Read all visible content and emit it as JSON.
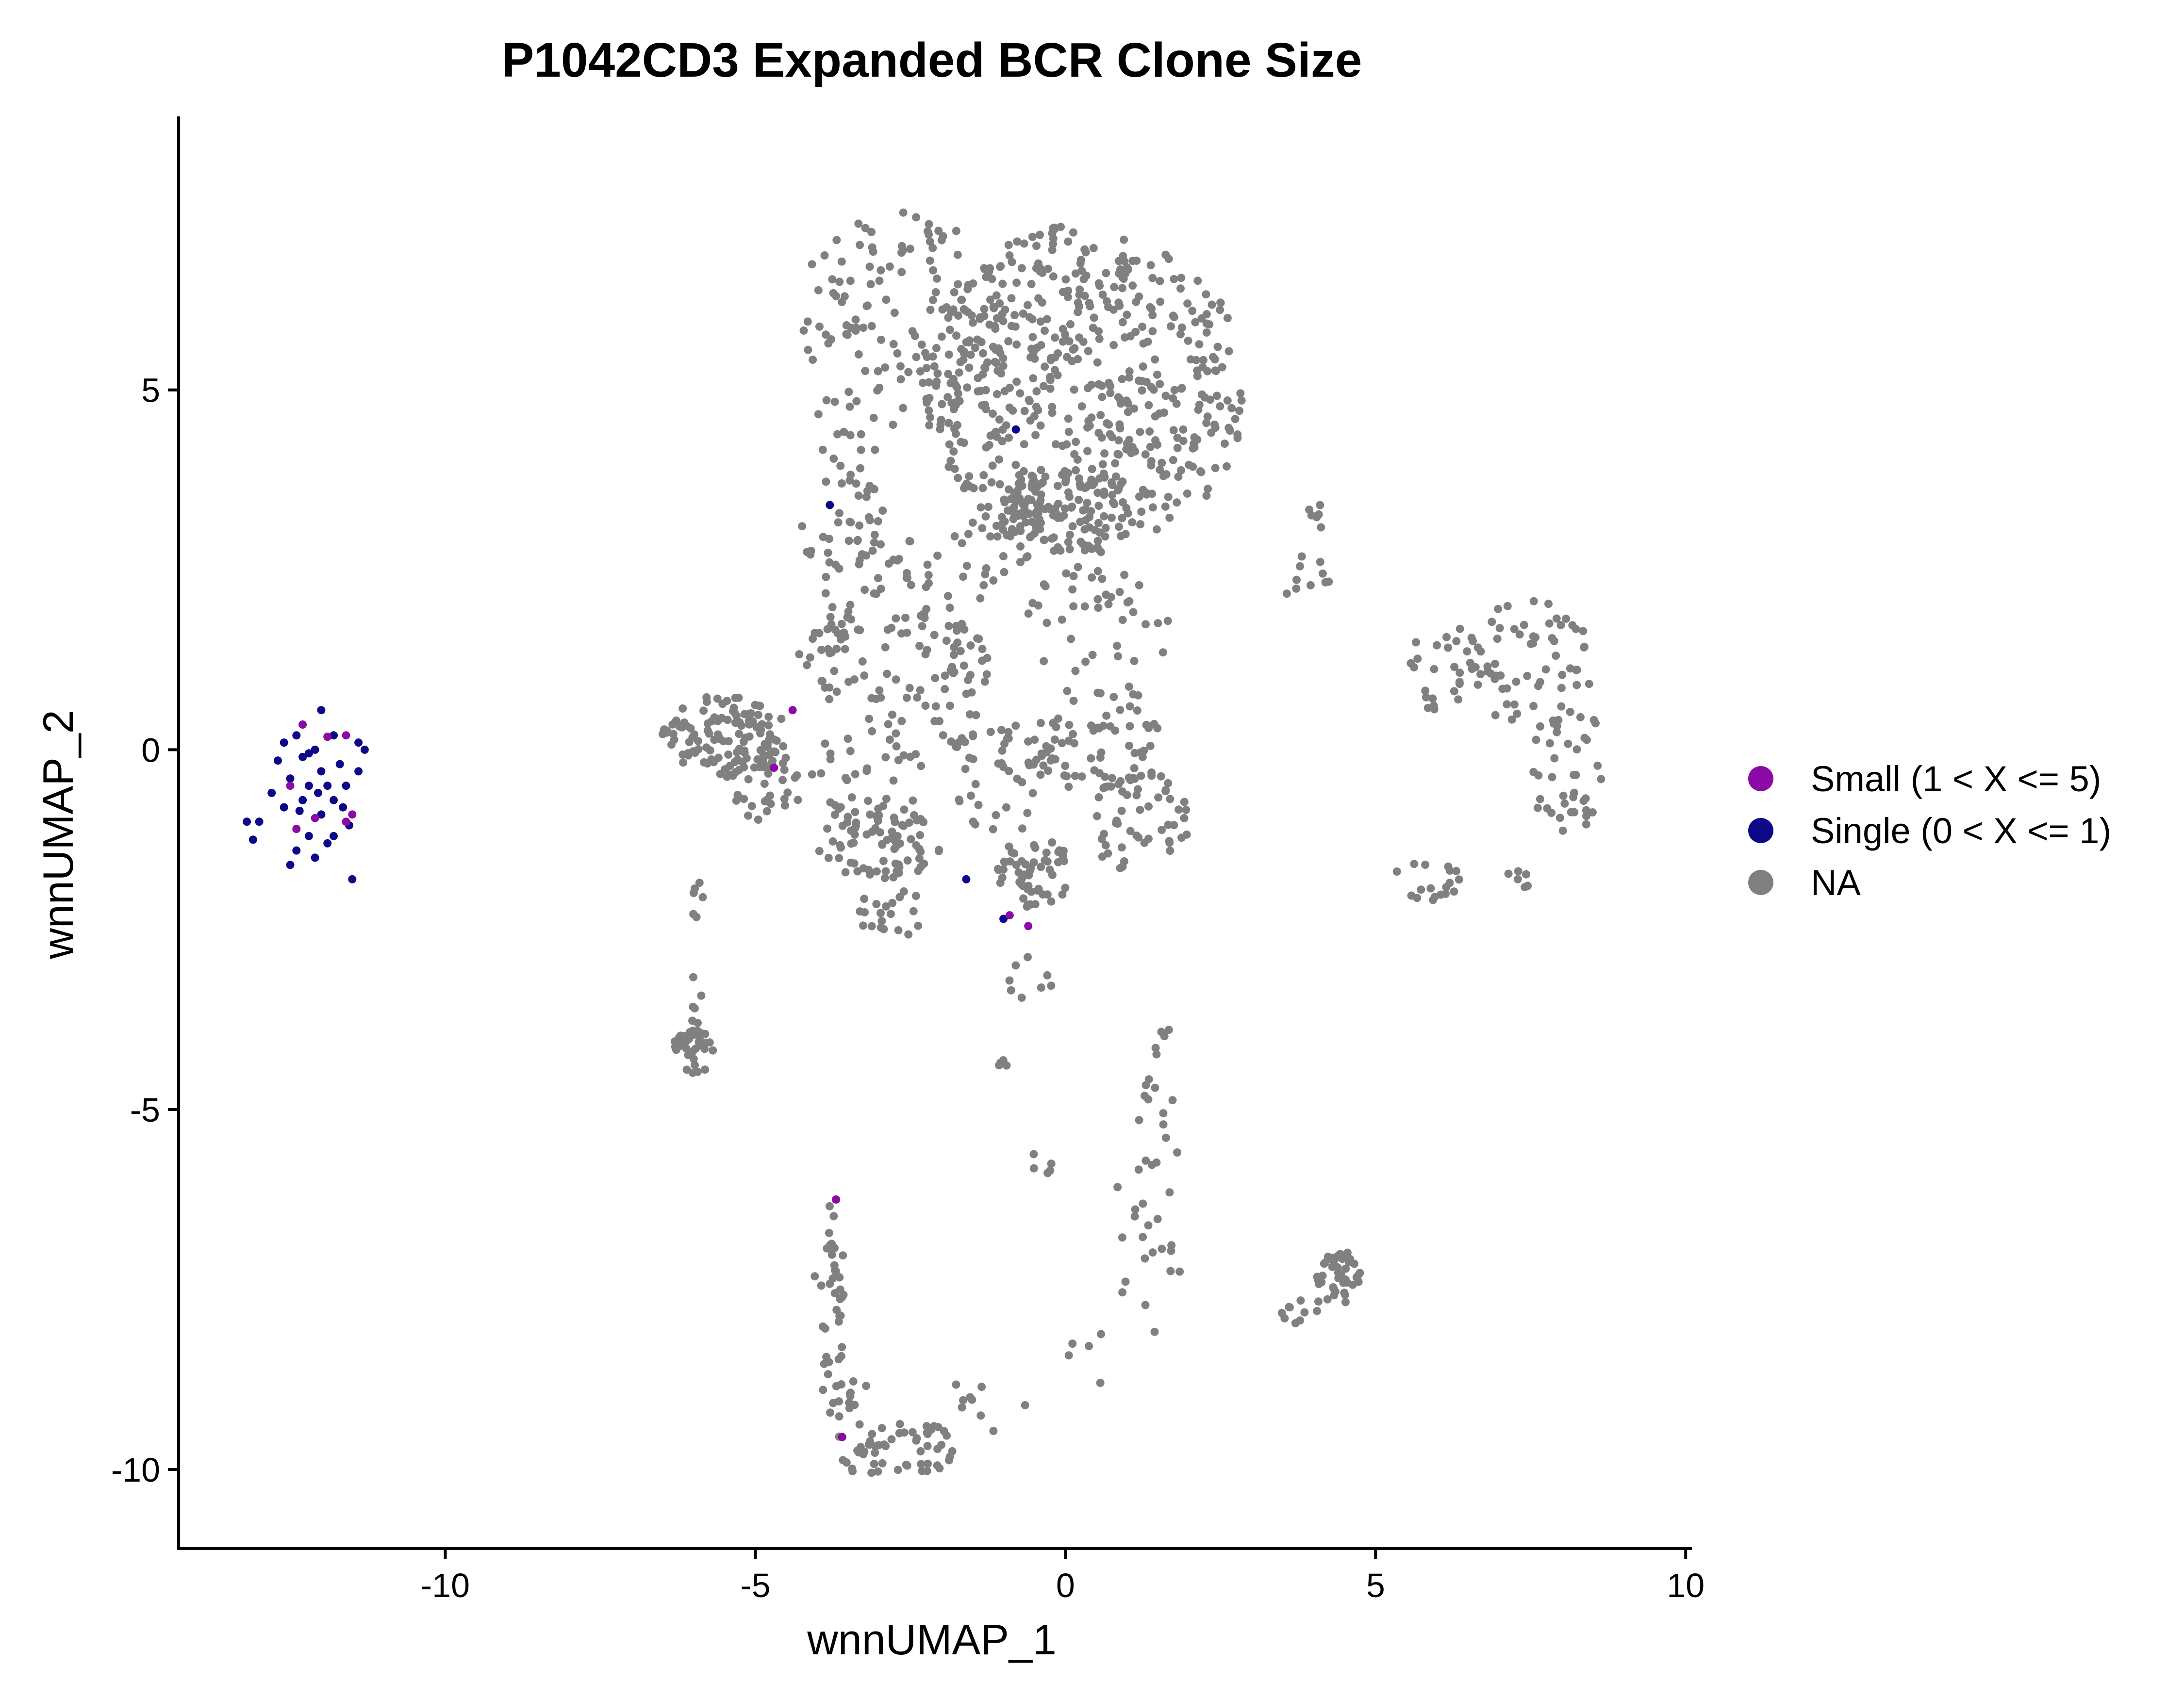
{
  "chart_data": {
    "type": "scatter",
    "title": "P1042CD3 Expanded BCR Clone Size",
    "xlabel": "wnnUMAP_1",
    "ylabel": "wnnUMAP_2",
    "xlim": [
      -14.3,
      10.1
    ],
    "ylim": [
      -11.1,
      8.8
    ],
    "xticks": [
      -10,
      -5,
      0,
      5,
      10
    ],
    "yticks": [
      -10,
      -5,
      0,
      5
    ],
    "xtick_labels": [
      "-10",
      "-5",
      "0",
      "5",
      "10"
    ],
    "ytick_labels": [
      "-10",
      "-5",
      "0",
      "5"
    ],
    "grid": false,
    "legend": {
      "placement": "right"
    },
    "series": [
      {
        "name": "Small (1 < X <= 5)",
        "color": "#8B0AA5",
        "points": [
          [
            -12.3,
            0.35
          ],
          [
            -11.9,
            0.18
          ],
          [
            -11.6,
            0.2
          ],
          [
            -12.5,
            -0.5
          ],
          [
            -11.5,
            -0.9
          ],
          [
            -11.6,
            -1.0
          ],
          [
            -12.4,
            -1.1
          ],
          [
            -12.1,
            -0.95
          ],
          [
            -4.4,
            0.55
          ],
          [
            -4.7,
            -0.25
          ],
          [
            -0.9,
            -2.3
          ],
          [
            -0.6,
            -2.45
          ],
          [
            -3.7,
            -6.25
          ],
          [
            -3.6,
            -9.55
          ]
        ]
      },
      {
        "name": "Single (0 < X <= 1)",
        "color": "#0D0887",
        "points": [
          [
            -12.0,
            0.55
          ],
          [
            -12.4,
            0.2
          ],
          [
            -12.6,
            0.1
          ],
          [
            -12.1,
            0.0
          ],
          [
            -11.8,
            0.2
          ],
          [
            -11.4,
            0.1
          ],
          [
            -12.3,
            -0.1
          ],
          [
            -11.7,
            -0.2
          ],
          [
            -12.0,
            -0.3
          ],
          [
            -11.4,
            -0.3
          ],
          [
            -12.5,
            -0.4
          ],
          [
            -12.2,
            -0.5
          ],
          [
            -11.9,
            -0.5
          ],
          [
            -11.6,
            -0.5
          ],
          [
            -12.3,
            -0.7
          ],
          [
            -11.8,
            -0.7
          ],
          [
            -12.6,
            -0.8
          ],
          [
            -12.0,
            -0.9
          ],
          [
            -12.8,
            -0.6
          ],
          [
            -13.0,
            -1.0
          ],
          [
            -12.2,
            -1.2
          ],
          [
            -11.9,
            -1.3
          ],
          [
            -12.4,
            -1.4
          ],
          [
            -12.5,
            -1.6
          ],
          [
            -12.1,
            -1.5
          ],
          [
            -11.8,
            -1.2
          ],
          [
            -11.5,
            -1.8
          ],
          [
            -13.2,
            -1.0
          ],
          [
            -13.1,
            -1.25
          ],
          [
            -11.3,
            0.0
          ],
          [
            -12.7,
            -0.15
          ],
          [
            -12.2,
            -0.05
          ],
          [
            -11.65,
            -0.8
          ],
          [
            -12.35,
            -0.85
          ],
          [
            -12.05,
            -0.6
          ],
          [
            -11.55,
            -1.05
          ],
          [
            -0.8,
            4.45
          ],
          [
            -3.8,
            3.4
          ],
          [
            -1.6,
            -1.8
          ],
          [
            -1.0,
            -2.35
          ]
        ]
      },
      {
        "name": "NA",
        "color": "#808080",
        "clusters": [
          {
            "cx": 0.3,
            "cy": 5.0,
            "rx": 2.6,
            "ry": 2.3,
            "n": 560,
            "seed": 11
          },
          {
            "cx": -2.7,
            "cy": 6.0,
            "rx": 1.6,
            "ry": 1.5,
            "n": 120,
            "seed": 12
          },
          {
            "cx": -3.6,
            "cy": 3.2,
            "rx": 0.7,
            "ry": 1.8,
            "n": 70,
            "seed": 13
          },
          {
            "cx": 0.0,
            "cy": 3.4,
            "rx": 1.1,
            "ry": 0.6,
            "n": 90,
            "seed": 14
          },
          {
            "cx": -5.5,
            "cy": 0.2,
            "rx": 1.0,
            "ry": 0.6,
            "n": 120,
            "seed": 15
          },
          {
            "cx": -4.8,
            "cy": -0.5,
            "rx": 0.6,
            "ry": 0.5,
            "n": 30,
            "seed": 16
          },
          {
            "cx": -3.8,
            "cy": 1.2,
            "rx": 0.6,
            "ry": 0.6,
            "n": 25,
            "seed": 17
          },
          {
            "cx": -2.6,
            "cy": 1.5,
            "rx": 1.0,
            "ry": 1.0,
            "n": 45,
            "seed": 18
          },
          {
            "cx": -3.2,
            "cy": -0.3,
            "rx": 0.9,
            "ry": 0.9,
            "n": 45,
            "seed": 19
          },
          {
            "cx": -3.0,
            "cy": -1.3,
            "rx": 1.0,
            "ry": 0.5,
            "n": 70,
            "seed": 20
          },
          {
            "cx": -2.8,
            "cy": -2.3,
            "rx": 0.6,
            "ry": 0.4,
            "n": 20,
            "seed": 21
          },
          {
            "cx": -1.7,
            "cy": 0.9,
            "rx": 0.5,
            "ry": 0.9,
            "n": 40,
            "seed": 22
          },
          {
            "cx": -1.0,
            "cy": -0.4,
            "rx": 0.8,
            "ry": 0.8,
            "n": 40,
            "seed": 23
          },
          {
            "cx": -0.5,
            "cy": -1.7,
            "rx": 0.6,
            "ry": 0.5,
            "n": 55,
            "seed": 24
          },
          {
            "cx": 0.5,
            "cy": 0.2,
            "rx": 1.0,
            "ry": 0.8,
            "n": 70,
            "seed": 25
          },
          {
            "cx": 1.2,
            "cy": -1.0,
            "rx": 0.9,
            "ry": 0.8,
            "n": 50,
            "seed": 26
          },
          {
            "cx": 0.5,
            "cy": 1.8,
            "rx": 1.3,
            "ry": 0.8,
            "n": 40,
            "seed": 27
          },
          {
            "cx": -1.3,
            "cy": 2.7,
            "rx": 0.8,
            "ry": 0.6,
            "n": 25,
            "seed": 28
          },
          {
            "cx": 3.8,
            "cy": 2.4,
            "rx": 0.6,
            "ry": 0.3,
            "n": 10,
            "seed": 29
          },
          {
            "cx": 4.1,
            "cy": 3.2,
            "rx": 0.3,
            "ry": 0.2,
            "n": 6,
            "seed": 30
          },
          {
            "cx": 7.5,
            "cy": 1.2,
            "rx": 1.0,
            "ry": 0.9,
            "n": 60,
            "seed": 31
          },
          {
            "cx": 8.1,
            "cy": -0.3,
            "rx": 0.7,
            "ry": 0.9,
            "n": 40,
            "seed": 32
          },
          {
            "cx": 6.3,
            "cy": 1.3,
            "rx": 0.8,
            "ry": 0.4,
            "n": 20,
            "seed": 33
          },
          {
            "cx": 5.8,
            "cy": 0.7,
            "rx": 0.6,
            "ry": 0.2,
            "n": 8,
            "seed": 34
          },
          {
            "cx": 5.8,
            "cy": -1.8,
            "rx": 0.6,
            "ry": 0.3,
            "n": 18,
            "seed": 35
          },
          {
            "cx": 7.3,
            "cy": -1.8,
            "rx": 0.3,
            "ry": 0.15,
            "n": 6,
            "seed": 36
          },
          {
            "cx": -6.0,
            "cy": -4.2,
            "rx": 0.35,
            "ry": 0.3,
            "n": 40,
            "seed": 37
          },
          {
            "cx": -6.0,
            "cy": -3.5,
            "rx": 0.15,
            "ry": 0.4,
            "n": 6,
            "seed": 38
          },
          {
            "cx": -5.9,
            "cy": -2.3,
            "rx": 0.15,
            "ry": 0.5,
            "n": 6,
            "seed": 39
          },
          {
            "cx": -3.8,
            "cy": -7.2,
            "rx": 0.3,
            "ry": 0.9,
            "n": 30,
            "seed": 40
          },
          {
            "cx": -3.6,
            "cy": -8.8,
            "rx": 0.4,
            "ry": 0.5,
            "n": 22,
            "seed": 41
          },
          {
            "cx": -2.8,
            "cy": -9.7,
            "rx": 1.1,
            "ry": 0.4,
            "n": 55,
            "seed": 42
          },
          {
            "cx": -1.5,
            "cy": -9.2,
            "rx": 1.0,
            "ry": 0.4,
            "n": 10,
            "seed": 43
          },
          {
            "cx": 1.4,
            "cy": -6.6,
            "rx": 0.6,
            "ry": 1.6,
            "n": 28,
            "seed": 44
          },
          {
            "cx": 1.6,
            "cy": -4.4,
            "rx": 0.4,
            "ry": 0.7,
            "n": 12,
            "seed": 45
          },
          {
            "cx": 4.4,
            "cy": -7.3,
            "rx": 0.35,
            "ry": 0.4,
            "n": 45,
            "seed": 46
          },
          {
            "cx": 3.8,
            "cy": -7.8,
            "rx": 0.4,
            "ry": 0.2,
            "n": 10,
            "seed": 47
          },
          {
            "cx": -0.6,
            "cy": -3.2,
            "rx": 0.4,
            "ry": 0.4,
            "n": 8,
            "seed": 48
          },
          {
            "cx": -1.0,
            "cy": -4.4,
            "rx": 0.1,
            "ry": 0.1,
            "n": 4,
            "seed": 49
          },
          {
            "cx": -0.5,
            "cy": -5.8,
            "rx": 0.4,
            "ry": 0.2,
            "n": 5,
            "seed": 50
          },
          {
            "cx": 0.6,
            "cy": -8.5,
            "rx": 0.8,
            "ry": 0.4,
            "n": 5,
            "seed": 51
          },
          {
            "cx": -2.5,
            "cy": 2.5,
            "rx": 0.4,
            "ry": 0.4,
            "n": 12,
            "seed": 52
          }
        ]
      }
    ]
  }
}
